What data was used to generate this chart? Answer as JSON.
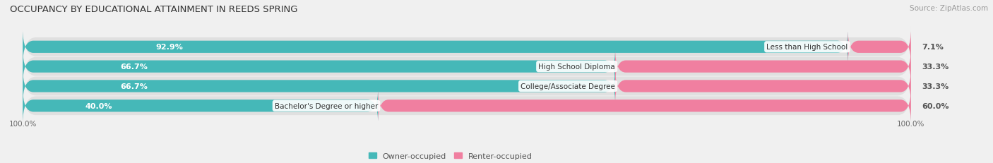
{
  "title": "OCCUPANCY BY EDUCATIONAL ATTAINMENT IN REEDS SPRING",
  "source": "Source: ZipAtlas.com",
  "categories": [
    "Less than High School",
    "High School Diploma",
    "College/Associate Degree",
    "Bachelor's Degree or higher"
  ],
  "owner_values": [
    92.9,
    66.7,
    66.7,
    40.0
  ],
  "renter_values": [
    7.1,
    33.3,
    33.3,
    60.0
  ],
  "owner_color": "#45b8b8",
  "renter_color": "#f07fa0",
  "bg_color": "#f0f0f0",
  "row_bg_color": "#e8e8e8",
  "title_fontsize": 9.5,
  "label_fontsize": 8.0,
  "value_fontsize": 8.0,
  "tick_fontsize": 7.5,
  "legend_fontsize": 8.0,
  "source_fontsize": 7.5,
  "bar_height": 0.62,
  "xlim_left": -5,
  "xlim_right": 105,
  "axis_label_left": "100.0%",
  "axis_label_right": "100.0%",
  "owner_label": "Owner-occupied",
  "renter_label": "Renter-occupied"
}
